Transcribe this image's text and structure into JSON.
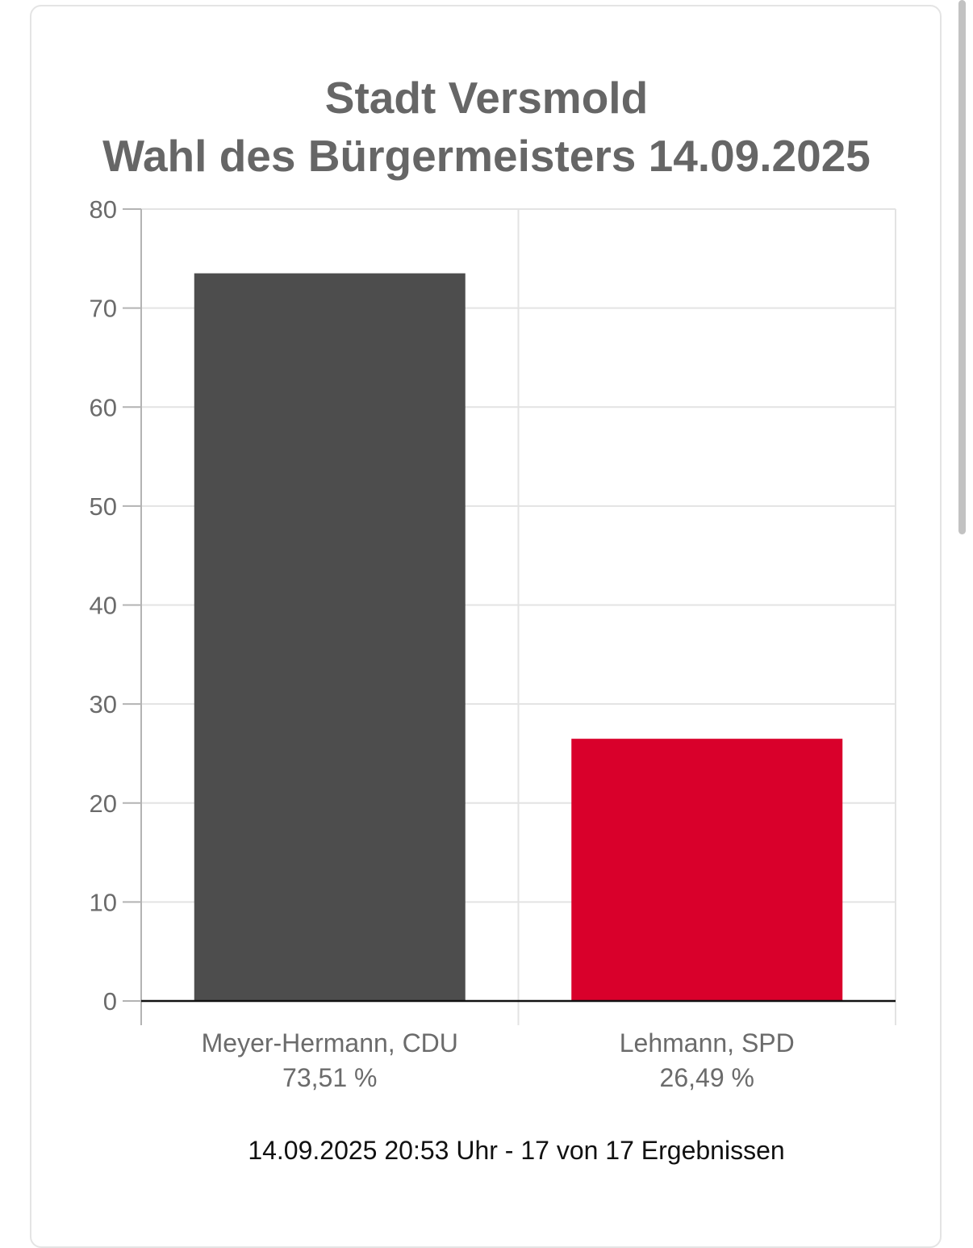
{
  "chart_data": {
    "type": "bar",
    "title": "Stadt Versmold",
    "subtitle": "Wahl des Bürgermeisters 14.09.2025",
    "categories": [
      "Meyer-Hermann, CDU",
      "Lehmann, SPD"
    ],
    "values": [
      73.51,
      26.49
    ],
    "value_labels": [
      "73,51 %",
      "26,49 %"
    ],
    "colors": [
      "#4d4d4d",
      "#d9002b"
    ],
    "ylim": [
      0,
      80
    ],
    "yticks": [
      0,
      10,
      20,
      30,
      40,
      50,
      60,
      70,
      80
    ],
    "grid": true,
    "xlabel": "",
    "ylabel": ""
  },
  "footer": {
    "status": "14.09.2025 20:53 Uhr - 17 von 17 Ergebnissen"
  }
}
